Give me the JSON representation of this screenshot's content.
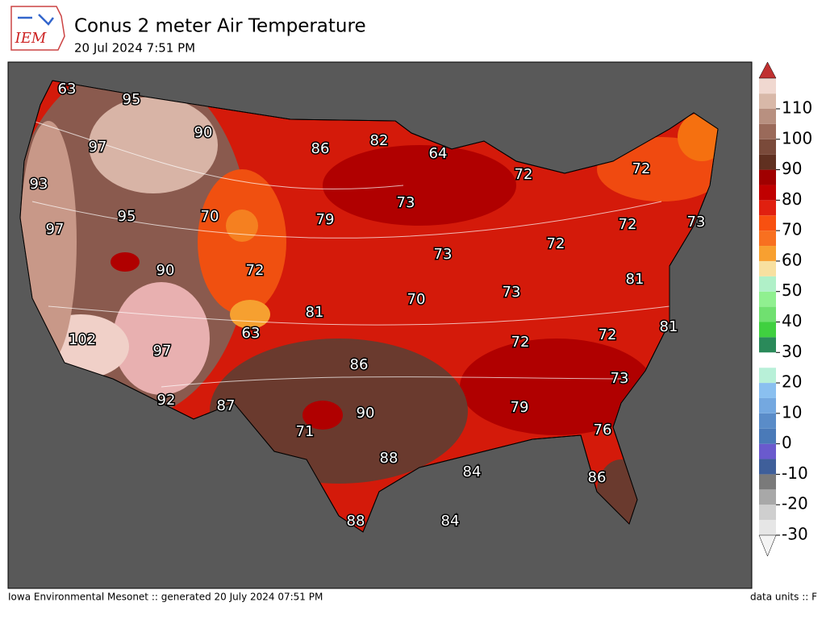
{
  "header": {
    "logo": "IEM",
    "title": "Conus 2 meter Air Temperature",
    "subtitle": "20 Jul 2024 7:51 PM"
  },
  "map": {
    "labels": [
      63,
      95,
      97,
      90,
      86,
      82,
      64,
      72,
      72,
      93,
      95,
      97,
      70,
      79,
      73,
      72,
      73,
      73,
      90,
      72,
      73,
      72,
      81,
      70,
      63,
      81,
      102,
      97,
      72,
      86,
      72,
      81,
      73,
      92,
      87,
      71,
      90,
      79,
      76,
      88,
      84,
      86,
      88,
      84
    ]
  },
  "colorbar": {
    "ticks": [
      -30,
      -20,
      -10,
      0,
      10,
      20,
      30,
      40,
      50,
      60,
      70,
      80,
      90,
      100,
      110
    ]
  },
  "footer": {
    "left": "Iowa Environmental Mesonet :: generated 20 July 2024 07:51 PM",
    "right": "data units :: F"
  }
}
